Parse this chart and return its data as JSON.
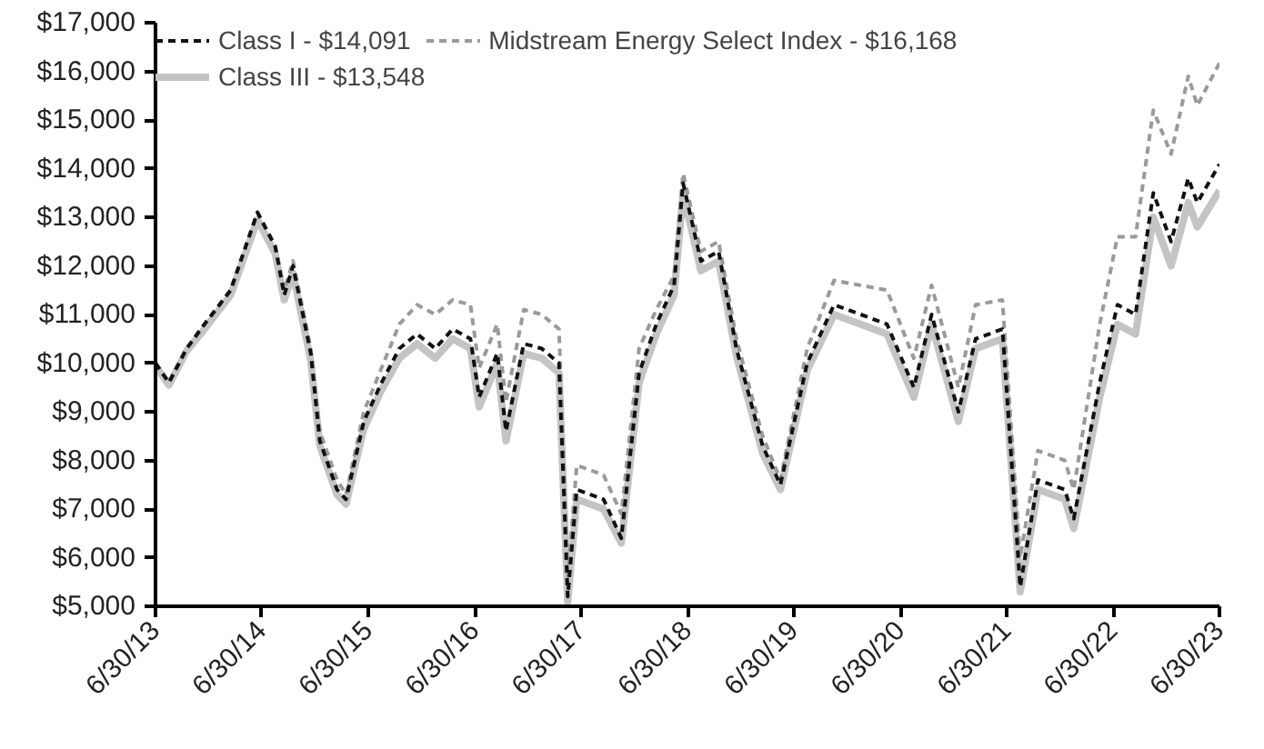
{
  "chart_data": {
    "type": "line",
    "x": [
      "2013-06-30",
      "2013-08",
      "2013-10",
      "2013-12",
      "2014-03",
      "2014-06",
      "2014-08",
      "2014-09",
      "2014-10",
      "2014-12",
      "2015-01",
      "2015-03",
      "2015-04",
      "2015-06",
      "2015-08",
      "2015-10",
      "2015-12",
      "2016-02",
      "2016-04",
      "2016-06",
      "2016-07",
      "2016-09",
      "2016-10",
      "2016-12",
      "2017-02",
      "2017-04",
      "2017-05",
      "2017-06",
      "2017-09",
      "2017-11",
      "2018-01",
      "2018-03",
      "2018-05",
      "2018-06",
      "2018-08",
      "2018-10",
      "2018-12",
      "2019-03",
      "2019-05",
      "2019-08",
      "2019-11",
      "2020-02",
      "2020-05",
      "2020-08",
      "2020-10",
      "2021-01",
      "2021-03",
      "2021-06",
      "2021-08",
      "2021-10",
      "2022-01",
      "2022-02",
      "2022-05",
      "2022-07",
      "2022-09",
      "2022-11",
      "2023-01",
      "2023-03",
      "2023-04",
      "2023-06-30"
    ],
    "series": [
      {
        "name": "Class III - $13,548",
        "color": "#c4c4c4",
        "line_style": "solid",
        "values": [
          9950,
          9550,
          10250,
          10700,
          11400,
          12950,
          12250,
          11300,
          11850,
          10050,
          8300,
          7300,
          7100,
          8650,
          9450,
          10100,
          10400,
          10100,
          10500,
          10300,
          9100,
          10000,
          8400,
          10200,
          10100,
          9800,
          5100,
          7200,
          7000,
          6300,
          9600,
          10600,
          11400,
          13500,
          11900,
          12100,
          10150,
          8150,
          7400,
          9850,
          11000,
          10800,
          10600,
          9300,
          10800,
          8800,
          10300,
          10500,
          5300,
          7400,
          7200,
          6600,
          9300,
          10800,
          10600,
          13000,
          12000,
          13300,
          12800,
          13548
        ]
      },
      {
        "name": "Midstream Energy Select Index - $16,168",
        "color": "#9a9a9a",
        "line_style": "dashed",
        "values": [
          10000,
          9600,
          10300,
          10800,
          11500,
          13100,
          12400,
          11500,
          12100,
          10300,
          8600,
          7600,
          7300,
          9000,
          9900,
          10800,
          11200,
          11000,
          11300,
          11200,
          9900,
          10800,
          9200,
          11100,
          11000,
          10700,
          5600,
          7900,
          7700,
          6900,
          10300,
          11100,
          11800,
          13900,
          12300,
          12500,
          10500,
          8500,
          7600,
          10300,
          11700,
          11600,
          11500,
          10100,
          11600,
          9500,
          11200,
          11300,
          6000,
          8200,
          8000,
          7400,
          10800,
          12600,
          12600,
          15200,
          14300,
          15900,
          15300,
          16168
        ]
      },
      {
        "name": "Class I - $14,091",
        "color": "#111111",
        "line_style": "dashed",
        "values": [
          10000,
          9600,
          10300,
          10800,
          11500,
          13100,
          12400,
          11400,
          12000,
          10200,
          8400,
          7400,
          7200,
          8800,
          9600,
          10300,
          10600,
          10300,
          10700,
          10500,
          9300,
          10200,
          8600,
          10400,
          10300,
          10000,
          5200,
          7400,
          7200,
          6400,
          9800,
          10800,
          11600,
          13700,
          12100,
          12300,
          10300,
          8300,
          7500,
          10000,
          11200,
          11000,
          10800,
          9500,
          11000,
          9000,
          10500,
          10700,
          5400,
          7600,
          7400,
          6800,
          9600,
          11200,
          11000,
          13500,
          12500,
          13800,
          13300,
          14091
        ]
      }
    ],
    "xlim": [
      "2013-06-30",
      "2023-06-30"
    ],
    "xticks": [
      {
        "value": "2013-06-30",
        "label": "6/30/13"
      },
      {
        "value": "2014-06-30",
        "label": "6/30/14"
      },
      {
        "value": "2015-06-30",
        "label": "6/30/15"
      },
      {
        "value": "2016-06-30",
        "label": "6/30/16"
      },
      {
        "value": "2017-06-30",
        "label": "6/30/17"
      },
      {
        "value": "2018-06-30",
        "label": "6/30/18"
      },
      {
        "value": "2019-06-30",
        "label": "6/30/19"
      },
      {
        "value": "2020-06-30",
        "label": "6/30/20"
      },
      {
        "value": "2021-06-30",
        "label": "6/30/21"
      },
      {
        "value": "2022-06-30",
        "label": "6/30/22"
      },
      {
        "value": "2023-06-30",
        "label": "6/30/23"
      }
    ],
    "ylim": [
      5000,
      17000
    ],
    "yticks": [
      {
        "value": 5000,
        "label": "$5,000"
      },
      {
        "value": 6000,
        "label": "$6,000"
      },
      {
        "value": 7000,
        "label": "$7,000"
      },
      {
        "value": 8000,
        "label": "$8,000"
      },
      {
        "value": 9000,
        "label": "$9,000"
      },
      {
        "value": 10000,
        "label": "$10,000"
      },
      {
        "value": 11000,
        "label": "$11,000"
      },
      {
        "value": 12000,
        "label": "$12,000"
      },
      {
        "value": 13000,
        "label": "$13,000"
      },
      {
        "value": 14000,
        "label": "$14,000"
      },
      {
        "value": 15000,
        "label": "$15,000"
      },
      {
        "value": 16000,
        "label": "$16,000"
      },
      {
        "value": 17000,
        "label": "$17,000"
      }
    ],
    "grid": false,
    "legend": "top"
  }
}
